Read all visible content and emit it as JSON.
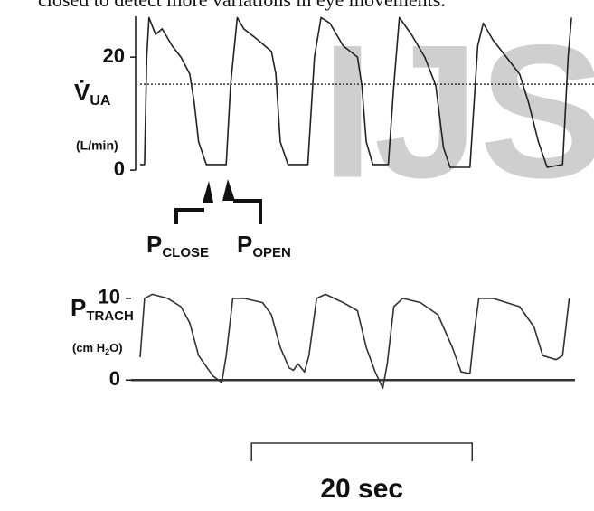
{
  "text_above": "closed to detect more variations in eye movements.",
  "watermark": "IJS",
  "chart_data": [
    {
      "type": "line",
      "y_label": {
        "main": "V̇",
        "sub": "UA"
      },
      "y_unit": "(L/min)",
      "annotations": [
        {
          "main": "P",
          "sub": "CLOSE"
        },
        {
          "main": "P",
          "sub": "OPEN"
        }
      ],
      "reference_line": 15.2,
      "xlim": [
        0,
        39.3
      ],
      "ylim": [
        -1.9,
        27.7
      ],
      "yticks": [
        0,
        20
      ],
      "x": [
        0,
        0.4,
        0.6,
        0.8,
        1.4,
        2.0,
        2.9,
        3.7,
        4.5,
        4.9,
        5.3,
        6.0,
        7.8,
        8.2,
        8.8,
        9.4,
        10.7,
        11.9,
        12.3,
        12.7,
        13.4,
        15.2,
        15.8,
        16.4,
        17.2,
        18.4,
        19.7,
        20.1,
        20.5,
        21.1,
        22.5,
        23.0,
        23.5,
        24.6,
        25.8,
        26.8,
        27.5,
        28.1,
        29.9,
        30.6,
        31.1,
        32.0,
        33.2,
        34.4,
        35.2,
        36.1,
        36.9,
        38.3,
        38.8,
        39.1
      ],
      "values": [
        1,
        1,
        20,
        27,
        24,
        25,
        22,
        20,
        17,
        12,
        5,
        1,
        1,
        15,
        27,
        25,
        23,
        21,
        17,
        5,
        1,
        1,
        20,
        27,
        26,
        22,
        20,
        15,
        5,
        1,
        1,
        15,
        27,
        24,
        20,
        15,
        4,
        0.5,
        0.5,
        22,
        26,
        23,
        20,
        17,
        12,
        5,
        0.5,
        1,
        20,
        27
      ],
      "color": "#222"
    },
    {
      "type": "line",
      "y_label": {
        "main": "P",
        "sub": "TRACH"
      },
      "y_unit": {
        "before": "(cm H",
        "sub": "2",
        "after": "O)"
      },
      "scale_bar": {
        "label": "20 sec",
        "start": 10.1,
        "end": 30.1
      },
      "xlim": [
        0,
        39.3
      ],
      "ylim": [
        -1.3,
        11.1
      ],
      "yticks": [
        0,
        10
      ],
      "x": [
        0,
        0.4,
        1.1,
        2.5,
        3.7,
        4.5,
        5.3,
        6.6,
        7.4,
        7.8,
        8.4,
        9.4,
        11.1,
        11.9,
        12.7,
        13.5,
        13.9,
        14.3,
        14.9,
        15.3,
        16.0,
        16.8,
        18.4,
        19.7,
        20.5,
        21.3,
        22.0,
        22.4,
        23.0,
        23.8,
        25.4,
        27.0,
        28.3,
        29.1,
        29.9,
        30.3,
        30.7,
        32.0,
        33.2,
        34.4,
        35.7,
        36.5,
        37.7,
        38.3,
        38.9
      ],
      "values": [
        2.8,
        10,
        10.5,
        10,
        9,
        7,
        3,
        0.5,
        -0.3,
        3,
        10,
        10,
        9.5,
        8,
        4,
        1.5,
        1.2,
        2,
        1,
        3,
        10,
        10.5,
        9.5,
        8.5,
        4,
        1,
        -1,
        2,
        9,
        10,
        9.5,
        8,
        4,
        1,
        0.8,
        6,
        10,
        10,
        9.5,
        9,
        6.5,
        3,
        2.5,
        3,
        10
      ],
      "color": "#333"
    }
  ]
}
